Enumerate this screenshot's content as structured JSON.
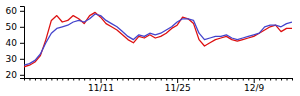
{
  "chart_data": {
    "type": "line",
    "categories": [
      null,
      null,
      null,
      null,
      null,
      null,
      null,
      null,
      null,
      null,
      null,
      null,
      null,
      null,
      "11/11",
      null,
      null,
      null,
      null,
      null,
      null,
      null,
      null,
      null,
      null,
      null,
      null,
      null,
      "11/25",
      null,
      null,
      null,
      null,
      null,
      null,
      null,
      null,
      null,
      null,
      null,
      null,
      null,
      "12/9",
      null,
      null,
      null,
      null,
      null,
      null,
      null
    ],
    "series": [
      {
        "color": "#dd1111",
        "values": [
          25,
          26,
          28,
          32,
          42,
          54,
          57,
          53,
          54,
          57,
          55,
          52,
          57,
          59,
          56,
          52,
          50,
          48,
          45,
          42,
          40,
          44,
          43,
          45,
          43,
          44,
          46,
          49,
          51,
          56,
          55,
          52,
          42,
          38,
          40,
          42,
          43,
          44,
          42,
          41,
          42,
          43,
          44,
          46,
          48,
          50,
          51,
          47,
          49,
          49
        ]
      },
      {
        "color": "#4444cc",
        "values": [
          26,
          27,
          29,
          33,
          40,
          46,
          49,
          50,
          51,
          53,
          54,
          53,
          55,
          58,
          57,
          54,
          52,
          50,
          47,
          44,
          42,
          45,
          44,
          46,
          45,
          46,
          48,
          50,
          53,
          55,
          55,
          54,
          46,
          42,
          43,
          44,
          44,
          45,
          43,
          42,
          43,
          44,
          45,
          46,
          50,
          51,
          51,
          50,
          52,
          53
        ]
      }
    ],
    "ylim": [
      18,
      63
    ],
    "yticks": [
      20,
      30,
      40,
      50,
      60
    ],
    "grid": false
  }
}
